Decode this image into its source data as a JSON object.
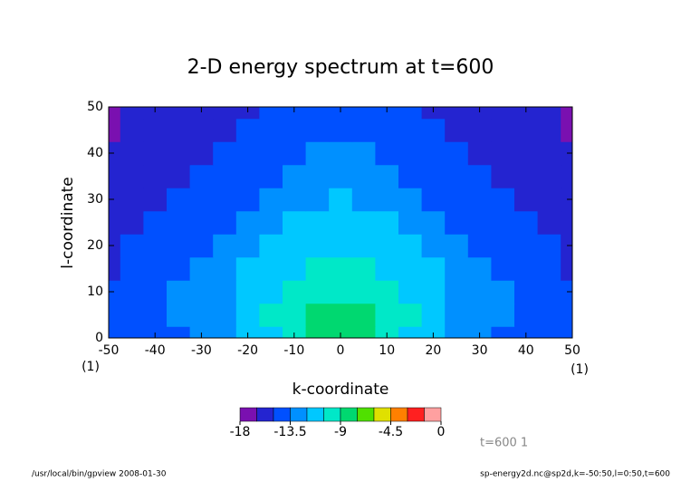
{
  "chart_data": {
    "type": "contour",
    "title": "2-D energy spectrum at t=600",
    "xlabel": "k-coordinate",
    "ylabel": "l-coordinate",
    "xlim": [
      -50,
      50
    ],
    "ylim": [
      0,
      50
    ],
    "xticks": [
      -50,
      -40,
      -30,
      -20,
      -10,
      0,
      10,
      20,
      30,
      40,
      50
    ],
    "yticks": [
      0,
      10,
      20,
      30,
      40,
      50
    ],
    "xtick_notes": [
      "(1)",
      "(1)"
    ],
    "x": [
      -50,
      -45,
      -40,
      -35,
      -30,
      -25,
      -20,
      -15,
      -10,
      -5,
      0,
      5,
      10,
      15,
      20,
      25,
      30,
      35,
      40,
      45,
      50
    ],
    "y": [
      0,
      5,
      10,
      15,
      20,
      25,
      30,
      35,
      40,
      45,
      50
    ],
    "z": [
      [
        -15,
        -15,
        -14.5,
        -14,
        -13.5,
        -13,
        -12,
        -11,
        -10,
        -9,
        -8,
        -9,
        -10,
        -11,
        -12,
        -13,
        -13.5,
        -14,
        -14.5,
        -15,
        -15
      ],
      [
        -15,
        -14.5,
        -14,
        -13.5,
        -13,
        -12.5,
        -11.5,
        -10.5,
        -9.5,
        -9,
        -8.5,
        -9,
        -9.5,
        -10.5,
        -11.5,
        -12.5,
        -13,
        -13.5,
        -14,
        -14.5,
        -15
      ],
      [
        -15,
        -14.5,
        -14,
        -13.5,
        -13,
        -12.5,
        -11.5,
        -11,
        -10,
        -9.5,
        -9.5,
        -9.5,
        -10,
        -11,
        -11.5,
        -12.5,
        -13,
        -13.5,
        -14,
        -14.5,
        -15
      ],
      [
        -15.5,
        -15,
        -14.5,
        -14,
        -13.5,
        -13,
        -12,
        -11.5,
        -11,
        -10.5,
        -10.5,
        -10.5,
        -11,
        -11.5,
        -12,
        -13,
        -13.5,
        -14,
        -14.5,
        -15,
        -15.5
      ],
      [
        -15.5,
        -15,
        -15,
        -14.5,
        -14,
        -13.5,
        -13,
        -12,
        -11.5,
        -11,
        -11,
        -11,
        -11.5,
        -12,
        -13,
        -13.5,
        -14,
        -14.5,
        -15,
        -15,
        -15.5
      ],
      [
        -16,
        -15.5,
        -15,
        -15,
        -14.5,
        -14,
        -13.5,
        -13,
        -12,
        -11.5,
        -11.5,
        -11.5,
        -12,
        -13,
        -13.5,
        -14,
        -14.5,
        -15,
        -15,
        -15.5,
        -16
      ],
      [
        -16,
        -15.5,
        -15.5,
        -15,
        -15,
        -14.5,
        -14,
        -13.5,
        -13,
        -12.5,
        -12,
        -12.5,
        -13,
        -13.5,
        -14,
        -14.5,
        -15,
        -15,
        -15.5,
        -15.5,
        -16
      ],
      [
        -16.5,
        -16,
        -15.5,
        -15.5,
        -15,
        -15,
        -14.5,
        -14,
        -13.5,
        -13,
        -13,
        -13,
        -13.5,
        -14,
        -14.5,
        -15,
        -15,
        -15.5,
        -15.5,
        -16,
        -16.5
      ],
      [
        -16.5,
        -16,
        -16,
        -15.5,
        -15.5,
        -15,
        -15,
        -14.5,
        -14,
        -13.5,
        -13.5,
        -13.5,
        -14,
        -14.5,
        -15,
        -15,
        -15.5,
        -15.5,
        -16,
        -16,
        -16.5
      ],
      [
        -17,
        -16.5,
        -16,
        -16,
        -15.5,
        -15.5,
        -15,
        -15,
        -14.5,
        -14,
        -14,
        -14,
        -14.5,
        -15,
        -15,
        -15.5,
        -15.5,
        -16,
        -16,
        -16.5,
        -17
      ],
      [
        -17,
        -16.5,
        -16.5,
        -16,
        -16,
        -15.5,
        -15.5,
        -15,
        -15,
        -14.5,
        -14.5,
        -14.5,
        -15,
        -15,
        -15.5,
        -15.5,
        -16,
        -16,
        -16.5,
        -16.5,
        -17
      ]
    ],
    "levels": [
      -18,
      -16.5,
      -15,
      -13.5,
      -12,
      -10.5,
      -9,
      -7.5,
      -6,
      -4.5,
      -3,
      -1.5,
      0
    ],
    "colors": [
      "#7a10b0",
      "#2424d0",
      "#0050ff",
      "#0090ff",
      "#00c8ff",
      "#00e8c8",
      "#00d870",
      "#50e000",
      "#e0e000",
      "#ff8000",
      "#ff2020",
      "#ffa0a0"
    ],
    "colorbar_ticks": [
      -18,
      -13.5,
      -9,
      -4.5,
      0
    ],
    "annotation": "t=600 1",
    "footer_left": "/usr/local/bin/gpview  2008-01-30",
    "footer_right": "sp-energy2d.nc@sp2d,k=-50:50,l=0:50,t=600"
  }
}
